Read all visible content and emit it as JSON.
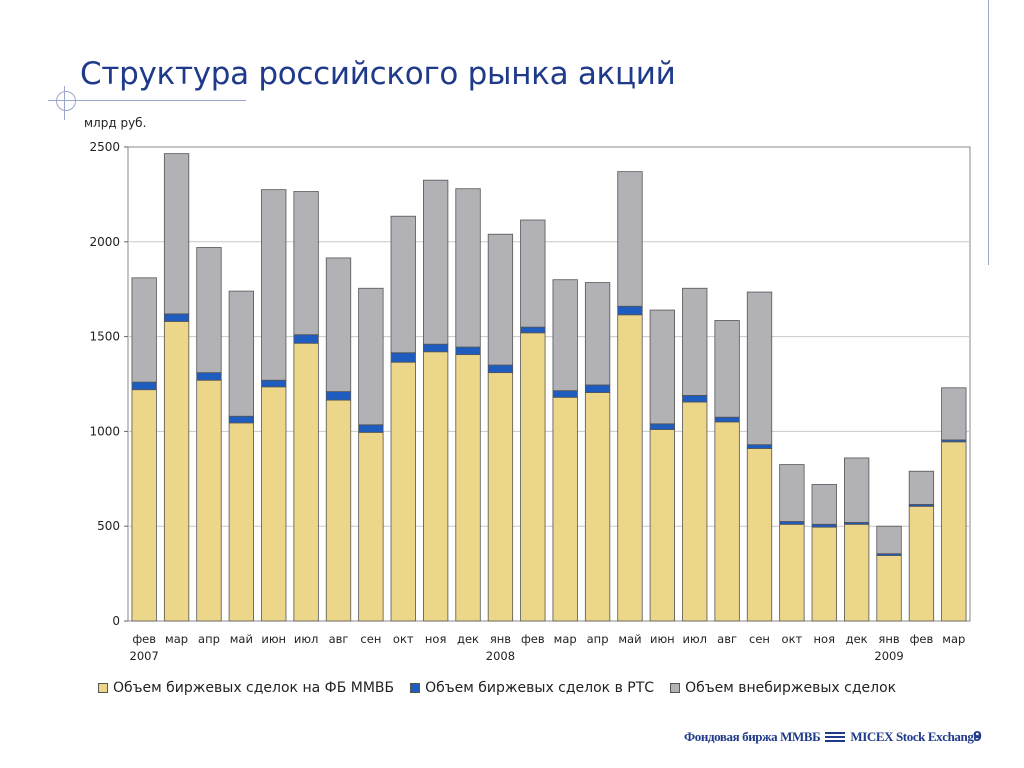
{
  "slide": {
    "title": "Структура российского рынка акций",
    "page_number": "9",
    "footer_logo": "Фондовая биржа ММВБ",
    "footer_logo_en": "MICEX Stock Exchange"
  },
  "chart_data": {
    "type": "bar",
    "stacked": true,
    "title": "",
    "ylabel": "млрд руб.",
    "xlabel": "",
    "ylim": [
      0,
      2500
    ],
    "yticks": [
      0,
      500,
      1000,
      1500,
      2000,
      2500
    ],
    "grid": true,
    "legend_position": "bottom",
    "categories": [
      "фев",
      "мар",
      "апр",
      "май",
      "июн",
      "июл",
      "авг",
      "сен",
      "окт",
      "ноя",
      "дек",
      "янв",
      "фев",
      "мар",
      "апр",
      "май",
      "июн",
      "июл",
      "авг",
      "сен",
      "окт",
      "ноя",
      "дек",
      "янв",
      "фев",
      "мар"
    ],
    "year_labels": [
      {
        "index": 0,
        "label": "2007"
      },
      {
        "index": 11,
        "label": "2008"
      },
      {
        "index": 23,
        "label": "2009"
      }
    ],
    "series": [
      {
        "name": "Объем биржевых сделок на ФБ ММВБ",
        "color": "#ecd68a",
        "values": [
          1220,
          1580,
          1270,
          1045,
          1235,
          1465,
          1165,
          995,
          1365,
          1420,
          1405,
          1310,
          1520,
          1180,
          1205,
          1615,
          1010,
          1155,
          1050,
          910,
          510,
          495,
          510,
          345,
          605,
          945
        ]
      },
      {
        "name": "Объем биржевых сделок в РТС",
        "color": "#1f5cc0",
        "values": [
          40,
          40,
          40,
          35,
          35,
          45,
          45,
          40,
          50,
          40,
          40,
          40,
          30,
          35,
          40,
          45,
          30,
          35,
          25,
          20,
          15,
          15,
          10,
          10,
          10,
          10
        ]
      },
      {
        "name": "Объем внебиржевых сделок",
        "color": "#b2b2b6",
        "values": [
          550,
          845,
          660,
          660,
          1005,
          755,
          705,
          720,
          720,
          865,
          835,
          690,
          565,
          585,
          540,
          710,
          600,
          565,
          510,
          805,
          300,
          210,
          340,
          145,
          175,
          275
        ]
      }
    ]
  }
}
